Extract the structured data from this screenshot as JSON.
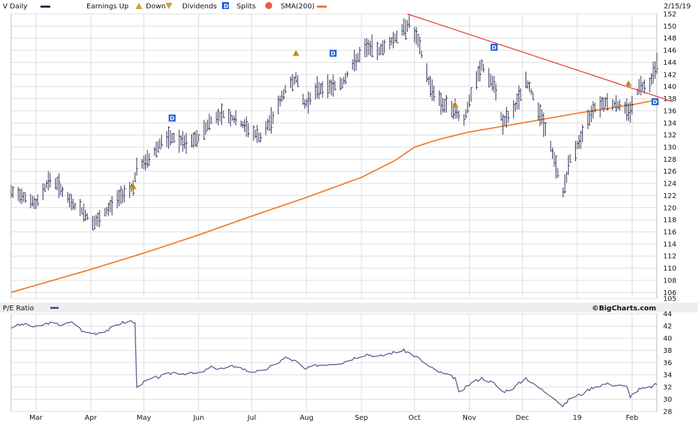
{
  "header": {
    "symbol_label": "V Daily",
    "earnings_label": "Earnings Up",
    "down_label": "Down",
    "dividends_label": "Dividends",
    "splits_label": "Splits",
    "sma_label": "SMA(200)",
    "date_label": "2/15/19"
  },
  "pe_panel": {
    "title": "P/E Ratio",
    "brand": "©BigCharts.com"
  },
  "colors": {
    "price_bars": "#2b2b55",
    "sma": "#f07a28",
    "trendline": "#e23030",
    "pe_line": "#4f5a8c",
    "earnings_marker": "#d6a13a",
    "dividend_marker": "#1f5fd6",
    "split_marker": "#e0603e",
    "grid": "#dcdcdc",
    "panel_bg": "#eeeeee"
  },
  "markers": {
    "dividend_glyph": "D",
    "earnings_glyph": "E"
  },
  "icons": [
    "earnings-up-icon",
    "earnings-down-icon",
    "dividend-icon",
    "split-icon"
  ],
  "chart_data": [
    {
      "type": "ohlc-bar",
      "title": "V Daily",
      "grid": true,
      "y_axis_position": "right",
      "ylim": [
        105,
        152
      ],
      "y_ticks": [
        105,
        106,
        108,
        110,
        112,
        114,
        116,
        118,
        120,
        122,
        124,
        126,
        128,
        130,
        132,
        134,
        136,
        138,
        140,
        142,
        144,
        146,
        148,
        150,
        152
      ],
      "x_tick_labels": [
        "Mar",
        "Apr",
        "May",
        "Jun",
        "Jul",
        "Aug",
        "Sep",
        "Oct",
        "Nov",
        "Dec",
        "19",
        "Feb"
      ],
      "x_tick_dates": [
        "2018-03-01",
        "2018-04-01",
        "2018-05-01",
        "2018-06-01",
        "2018-07-01",
        "2018-08-01",
        "2018-09-01",
        "2018-10-01",
        "2018-11-01",
        "2018-12-01",
        "2019-01-01",
        "2019-02-01"
      ],
      "x_range": [
        "2018-02-15",
        "2019-02-15"
      ],
      "price_keypoints": [
        [
          "2018-02-15",
          122.5
        ],
        [
          "2018-02-22",
          122.0
        ],
        [
          "2018-03-01",
          120.5
        ],
        [
          "2018-03-08",
          124.5
        ],
        [
          "2018-03-13",
          124.0
        ],
        [
          "2018-03-20",
          121.0
        ],
        [
          "2018-03-27",
          119.5
        ],
        [
          "2018-04-02",
          117.5
        ],
        [
          "2018-04-06",
          118.0
        ],
        [
          "2018-04-13",
          120.5
        ],
        [
          "2018-04-20",
          122.5
        ],
        [
          "2018-04-25",
          123.5
        ],
        [
          "2018-04-27",
          126.5
        ],
        [
          "2018-05-04",
          128.0
        ],
        [
          "2018-05-11",
          131.0
        ],
        [
          "2018-05-18",
          131.5
        ],
        [
          "2018-05-25",
          130.5
        ],
        [
          "2018-06-01",
          131.5
        ],
        [
          "2018-06-08",
          134.5
        ],
        [
          "2018-06-15",
          135.5
        ],
        [
          "2018-06-22",
          134.5
        ],
        [
          "2018-06-29",
          133.0
        ],
        [
          "2018-07-06",
          131.5
        ],
        [
          "2018-07-13",
          135.0
        ],
        [
          "2018-07-20",
          139.5
        ],
        [
          "2018-07-26",
          141.5
        ],
        [
          "2018-07-31",
          137.0
        ],
        [
          "2018-08-07",
          139.5
        ],
        [
          "2018-08-14",
          140.0
        ],
        [
          "2018-08-21",
          140.5
        ],
        [
          "2018-08-28",
          144.0
        ],
        [
          "2018-09-04",
          146.5
        ],
        [
          "2018-09-11",
          146.0
        ],
        [
          "2018-09-18",
          147.5
        ],
        [
          "2018-09-25",
          149.5
        ],
        [
          "2018-09-28",
          150.5
        ],
        [
          "2018-10-03",
          147.5
        ],
        [
          "2018-10-10",
          140.0
        ],
        [
          "2018-10-17",
          137.0
        ],
        [
          "2018-10-24",
          136.0
        ],
        [
          "2018-10-29",
          134.5
        ],
        [
          "2018-11-02",
          138.5
        ],
        [
          "2018-11-08",
          143.5
        ],
        [
          "2018-11-15",
          140.0
        ],
        [
          "2018-11-20",
          134.0
        ],
        [
          "2018-11-26",
          136.0
        ],
        [
          "2018-12-03",
          141.0
        ],
        [
          "2018-12-07",
          138.5
        ],
        [
          "2018-12-13",
          134.0
        ],
        [
          "2018-12-18",
          129.0
        ],
        [
          "2018-12-24",
          122.5
        ],
        [
          "2018-12-28",
          128.0
        ],
        [
          "2019-01-04",
          132.0
        ],
        [
          "2019-01-10",
          136.5
        ],
        [
          "2019-01-17",
          137.5
        ],
        [
          "2019-01-24",
          137.0
        ],
        [
          "2019-01-31",
          136.0
        ],
        [
          "2019-02-05",
          140.0
        ],
        [
          "2019-02-11",
          140.5
        ],
        [
          "2019-02-15",
          144.0
        ]
      ],
      "sma200": [
        [
          "2018-02-15",
          106.0
        ],
        [
          "2018-04-01",
          109.8
        ],
        [
          "2018-05-01",
          112.5
        ],
        [
          "2018-06-01",
          115.5
        ],
        [
          "2018-07-01",
          118.6
        ],
        [
          "2018-08-01",
          121.7
        ],
        [
          "2018-09-01",
          125.0
        ],
        [
          "2018-09-20",
          127.8
        ],
        [
          "2018-10-01",
          130.0
        ],
        [
          "2018-10-15",
          131.3
        ],
        [
          "2018-11-01",
          132.5
        ],
        [
          "2018-12-01",
          134.0
        ],
        [
          "2019-01-01",
          135.6
        ],
        [
          "2019-02-01",
          137.0
        ],
        [
          "2019-02-15",
          137.8
        ]
      ],
      "trendline": [
        [
          "2018-09-27",
          152.0
        ],
        [
          "2019-02-24",
          137.5
        ]
      ],
      "earnings_markers": [
        {
          "date": "2018-04-25",
          "price": 123.5
        },
        {
          "date": "2018-07-26",
          "price": 145.5
        },
        {
          "date": "2018-10-24",
          "price": 137.0
        },
        {
          "date": "2019-01-30",
          "price": 140.5
        }
      ],
      "dividend_markers": [
        {
          "date": "2018-05-17",
          "price": 134.8
        },
        {
          "date": "2018-08-16",
          "price": 145.5
        },
        {
          "date": "2018-11-15",
          "price": 146.5
        },
        {
          "date": "2019-02-14",
          "price": 137.5
        }
      ]
    },
    {
      "type": "line",
      "title": "P/E Ratio",
      "grid": true,
      "y_axis_position": "right",
      "ylim": [
        28,
        44
      ],
      "y_ticks": [
        28,
        30,
        32,
        34,
        36,
        38,
        40,
        42,
        44
      ],
      "x_tick_labels": [
        "Mar",
        "Apr",
        "May",
        "Jun",
        "Jul",
        "Aug",
        "Sep",
        "Oct",
        "Nov",
        "Dec",
        "19",
        "Feb"
      ],
      "x_range": [
        "2018-02-15",
        "2019-02-15"
      ],
      "series": [
        {
          "values": [
            [
              "2018-02-15",
              41.8
            ],
            [
              "2018-02-22",
              42.3
            ],
            [
              "2018-03-01",
              41.8
            ],
            [
              "2018-03-08",
              42.5
            ],
            [
              "2018-03-15",
              42.2
            ],
            [
              "2018-03-22",
              42.6
            ],
            [
              "2018-03-28",
              41.0
            ],
            [
              "2018-04-04",
              40.8
            ],
            [
              "2018-04-11",
              41.4
            ],
            [
              "2018-04-18",
              42.5
            ],
            [
              "2018-04-24",
              42.8
            ],
            [
              "2018-04-26",
              42.4
            ],
            [
              "2018-04-27",
              32.2
            ],
            [
              "2018-05-04",
              33.2
            ],
            [
              "2018-05-11",
              33.8
            ],
            [
              "2018-05-18",
              34.4
            ],
            [
              "2018-05-25",
              34.2
            ],
            [
              "2018-06-01",
              34.2
            ],
            [
              "2018-06-08",
              35.2
            ],
            [
              "2018-06-15",
              35.0
            ],
            [
              "2018-06-22",
              35.5
            ],
            [
              "2018-06-29",
              34.6
            ],
            [
              "2018-07-06",
              34.5
            ],
            [
              "2018-07-13",
              35.5
            ],
            [
              "2018-07-20",
              36.8
            ],
            [
              "2018-07-26",
              36.2
            ],
            [
              "2018-07-31",
              34.9
            ],
            [
              "2018-08-07",
              35.6
            ],
            [
              "2018-08-14",
              35.8
            ],
            [
              "2018-08-21",
              36.0
            ],
            [
              "2018-08-28",
              36.8
            ],
            [
              "2018-09-04",
              37.4
            ],
            [
              "2018-09-11",
              37.0
            ],
            [
              "2018-09-18",
              37.6
            ],
            [
              "2018-09-25",
              38.0
            ],
            [
              "2018-09-28",
              37.6
            ],
            [
              "2018-10-03",
              36.8
            ],
            [
              "2018-10-10",
              35.2
            ],
            [
              "2018-10-17",
              34.2
            ],
            [
              "2018-10-24",
              33.5
            ],
            [
              "2018-10-26",
              31.0
            ],
            [
              "2018-11-02",
              32.6
            ],
            [
              "2018-11-08",
              33.5
            ],
            [
              "2018-11-15",
              32.6
            ],
            [
              "2018-11-20",
              31.2
            ],
            [
              "2018-11-26",
              31.9
            ],
            [
              "2018-12-03",
              33.5
            ],
            [
              "2018-12-07",
              32.5
            ],
            [
              "2018-12-13",
              31.4
            ],
            [
              "2018-12-18",
              30.5
            ],
            [
              "2018-12-24",
              28.8
            ],
            [
              "2018-12-28",
              30.2
            ],
            [
              "2019-01-04",
              30.9
            ],
            [
              "2019-01-10",
              32.0
            ],
            [
              "2019-01-17",
              32.5
            ],
            [
              "2019-01-24",
              32.3
            ],
            [
              "2019-01-29",
              32.0
            ],
            [
              "2019-01-31",
              30.5
            ],
            [
              "2019-02-05",
              31.6
            ],
            [
              "2019-02-11",
              31.9
            ],
            [
              "2019-02-15",
              32.5
            ]
          ]
        }
      ]
    }
  ]
}
